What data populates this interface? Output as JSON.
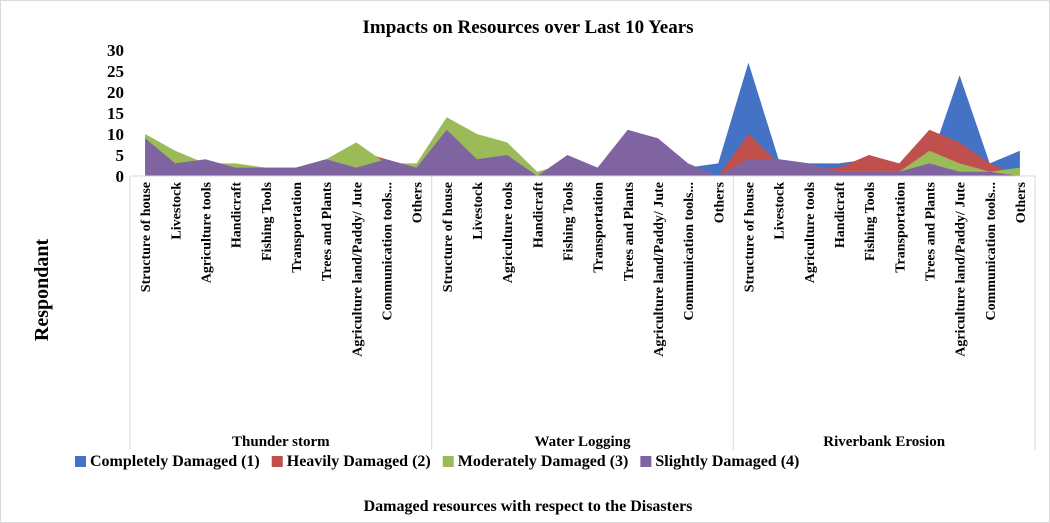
{
  "chart_data": {
    "type": "area",
    "title": "Impacts on Resources over Last 10 Years",
    "y_label": "Respondant",
    "x_label": "Damaged resources with respect to the Disasters",
    "groups": [
      "Thunder storm",
      "Water Logging",
      "Riverbank Erosion"
    ],
    "categories": [
      "Structure of house",
      "Livestock",
      "Agriculture tools",
      "Handicraft",
      "Fishing Tools",
      "Transportation",
      "Trees and Plants",
      "Agriculture land/Paddy/ Jute",
      "Communication tools...",
      "Others",
      "Structure of house",
      "Livestock",
      "Agriculture tools",
      "Handicraft",
      "Fishing Tools",
      "Transportation",
      "Trees and Plants",
      "Agriculture land/Paddy/ Jute",
      "Communication tools...",
      "Others",
      "Structure of house",
      "Livestock",
      "Agriculture tools",
      "Handicraft",
      "Fishing Tools",
      "Transportation",
      "Trees and Plants",
      "Agriculture land/Paddy/ Jute",
      "Communication tools...",
      "Others"
    ],
    "series": [
      {
        "name": "Completely Damaged (1)",
        "color": "#4472c4",
        "values": [
          0,
          0,
          0,
          0,
          0,
          0,
          0,
          0,
          0,
          0,
          0,
          0,
          0,
          0,
          0,
          0,
          0,
          0,
          2,
          3,
          27,
          4,
          3,
          3,
          4,
          2,
          3,
          24,
          3,
          6
        ]
      },
      {
        "name": "Heavily Damaged (2)",
        "color": "#c0504d",
        "values": [
          0,
          0,
          0,
          0,
          0,
          0,
          0,
          6,
          4,
          0,
          0,
          0,
          0,
          0,
          0,
          0,
          0,
          0,
          0,
          0,
          10,
          3,
          2,
          2,
          5,
          3,
          11,
          8,
          3,
          0
        ]
      },
      {
        "name": "Moderately Damaged (3)",
        "color": "#9bbb59",
        "values": [
          10,
          6,
          3,
          3,
          2,
          2,
          4,
          8,
          3,
          3,
          14,
          10,
          8,
          1,
          3,
          2,
          5,
          4,
          2,
          0,
          3,
          3,
          2,
          1,
          1,
          1,
          6,
          3,
          1,
          2
        ]
      },
      {
        "name": "Slightly Damaged (4)",
        "color": "#8064a2",
        "values": [
          9,
          3,
          4,
          2,
          2,
          2,
          4,
          2,
          4,
          2,
          11,
          4,
          5,
          0,
          5,
          2,
          11,
          9,
          3,
          0,
          4,
          4,
          3,
          1,
          1,
          1,
          3,
          1,
          1,
          0
        ]
      }
    ],
    "ylim": [
      0,
      30
    ],
    "yticks": [
      0,
      5,
      10,
      15,
      20,
      25,
      30
    ],
    "legend": "bottom"
  }
}
